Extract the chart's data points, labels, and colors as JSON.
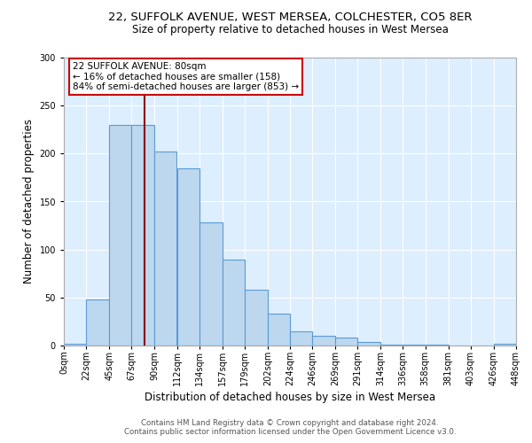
{
  "title1": "22, SUFFOLK AVENUE, WEST MERSEA, COLCHESTER, CO5 8ER",
  "title2": "Size of property relative to detached houses in West Mersea",
  "xlabel": "Distribution of detached houses by size in West Mersea",
  "ylabel": "Number of detached properties",
  "bar_labels": [
    "0sqm",
    "22sqm",
    "45sqm",
    "67sqm",
    "90sqm",
    "112sqm",
    "134sqm",
    "157sqm",
    "179sqm",
    "202sqm",
    "224sqm",
    "246sqm",
    "269sqm",
    "291sqm",
    "314sqm",
    "336sqm",
    "358sqm",
    "381sqm",
    "403sqm",
    "426sqm",
    "448sqm"
  ],
  "bar_heights": [
    2,
    48,
    230,
    230,
    202,
    185,
    128,
    90,
    58,
    33,
    15,
    10,
    8,
    4,
    1,
    1,
    1,
    0,
    0,
    2
  ],
  "bar_color": "#bdd7ee",
  "bar_edge_color": "#5b9bd5",
  "vline_x": 80,
  "vline_color": "#8b0000",
  "annotation_line1": "22 SUFFOLK AVENUE: 80sqm",
  "annotation_line2": "← 16% of detached houses are smaller (158)",
  "annotation_line3": "84% of semi-detached houses are larger (853) →",
  "annotation_box_color": "#ffffff",
  "annotation_box_edge": "#cc0000",
  "ylim": [
    0,
    300
  ],
  "yticks": [
    0,
    50,
    100,
    150,
    200,
    250,
    300
  ],
  "footer1": "Contains HM Land Registry data © Crown copyright and database right 2024.",
  "footer2": "Contains public sector information licensed under the Open Government Licence v3.0.",
  "bg_color": "#ddeeff",
  "title1_fontsize": 9.5,
  "title2_fontsize": 8.5,
  "ylabel_fontsize": 8.5,
  "xlabel_fontsize": 8.5,
  "tick_fontsize": 7,
  "annotation_fontsize": 7.5,
  "footer_fontsize": 6.2
}
